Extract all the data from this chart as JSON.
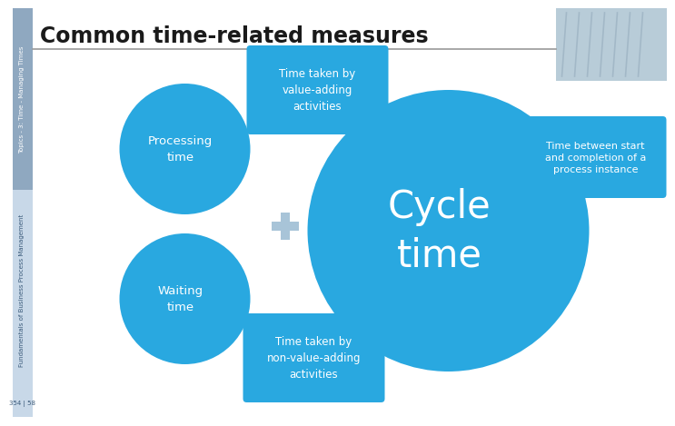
{
  "title": "Common time-related measures",
  "title_fontsize": 17,
  "title_fontweight": "bold",
  "title_color": "#1a1a1a",
  "bg_color": "#ffffff",
  "sidebar_top_color": "#8fa8c0",
  "sidebar_bottom_color": "#c8d8e8",
  "header_line_color": "#999999",
  "circle_small_color": "#29a8e0",
  "circle_large_color": "#29a8e0",
  "box_top_color": "#29a8e0",
  "box_bottom_color": "#29a8e0",
  "box_right_color": "#29a8e0",
  "plus_color": "#a8c4d8",
  "arrow_color": "#a8c4d8",
  "processing_time_label": "Processing\ntime",
  "waiting_time_label": "Waiting\ntime",
  "cycle_time_label": "Cycle\ntime",
  "box1_text": "Time taken by\nvalue-adding\nactivities",
  "box2_text": "Time taken by\nnon-value-adding\nactivities",
  "box_right_text": "Time between start\nand completion of a\nprocess instance",
  "sidebar_top_text": "Topics - 3: Time - Managing Times",
  "sidebar_bottom_text": "Fundamentals of Business Process Management",
  "page_text": "354 | 58",
  "font_color_white": "#ffffff",
  "font_color_dark": "#1a5a8a",
  "img_placeholder_color": "#b8ccd8"
}
